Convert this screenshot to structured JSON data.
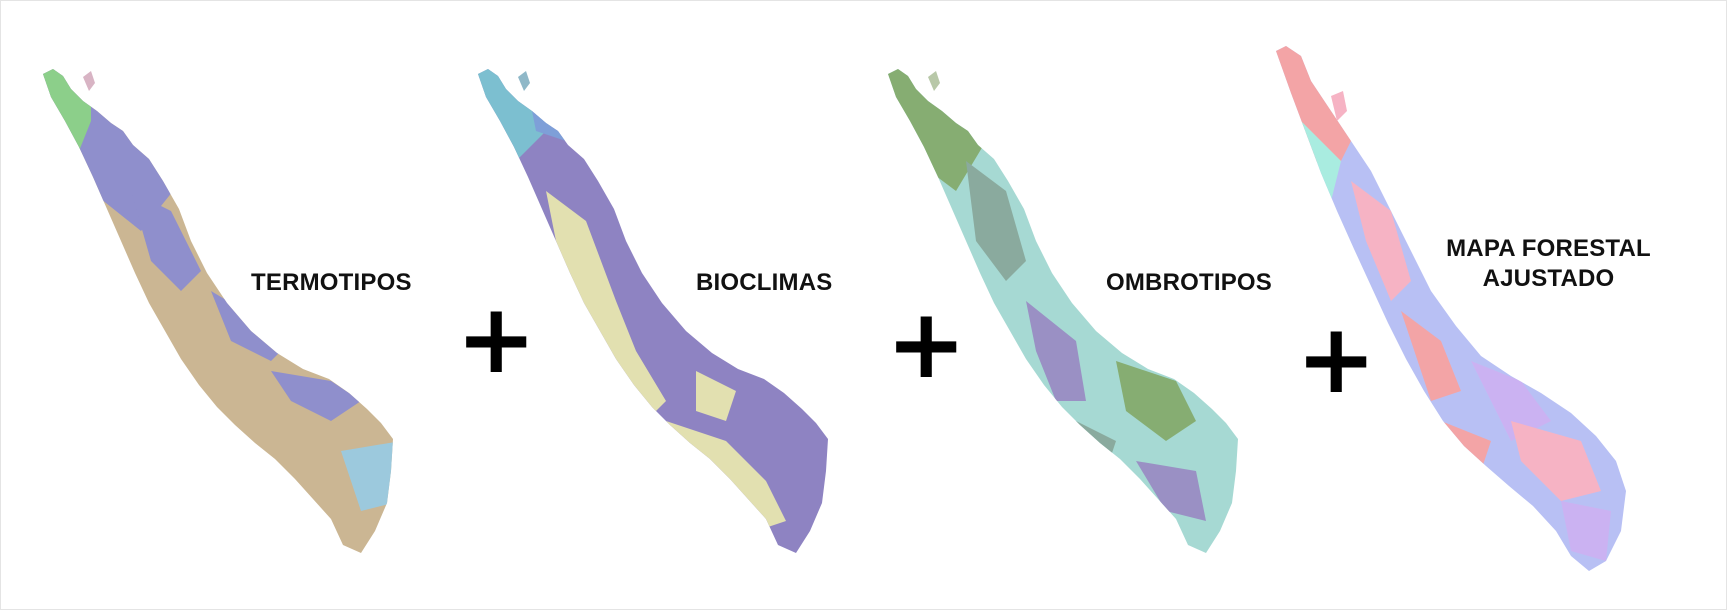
{
  "labels": {
    "termotipos": "TERMOTIPOS",
    "bioclimas": "BIOCLIMAS",
    "ombrotipos": "OMBROTIPOS",
    "mapa_line1": "MAPA FORESTAL",
    "mapa_line2": "AJUSTADO"
  },
  "operators": {
    "plus": "+"
  },
  "colors": {
    "termotipos": [
      "#cbb693",
      "#8f8fcc",
      "#8ccf8a",
      "#9cc9dd"
    ],
    "bioclimas": [
      "#8e83c2",
      "#e2e0b0",
      "#7cbfd0",
      "#7e9fd8"
    ],
    "ombrotipos": [
      "#a6d9d3",
      "#86ad72",
      "#9a90c4",
      "#8aaa9e"
    ],
    "mapa_forestal": [
      "#b8c0f4",
      "#f6b3c4",
      "#f3a4a6",
      "#cbb2f2",
      "#a9ece0"
    ]
  }
}
